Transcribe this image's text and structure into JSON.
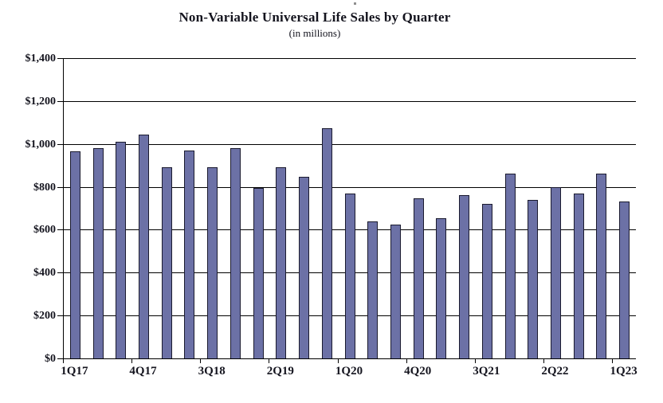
{
  "chart_data": {
    "type": "bar",
    "title": "Non-Variable Universal Life Sales by Quarter",
    "subtitle": "(in millions)",
    "categories": [
      "1Q17",
      "2Q17",
      "3Q17",
      "4Q17",
      "1Q18",
      "2Q18",
      "3Q18",
      "4Q18",
      "1Q19",
      "2Q19",
      "3Q19",
      "4Q19",
      "1Q20",
      "2Q20",
      "3Q20",
      "4Q20",
      "1Q21",
      "2Q21",
      "3Q21",
      "4Q21",
      "1Q22",
      "2Q22",
      "3Q22",
      "4Q22",
      "1Q23"
    ],
    "values": [
      965,
      980,
      1010,
      1045,
      890,
      970,
      890,
      980,
      795,
      890,
      845,
      1075,
      770,
      640,
      625,
      745,
      655,
      760,
      720,
      860,
      740,
      800,
      770,
      860,
      730
    ],
    "x_tick_labels": [
      "1Q17",
      "4Q17",
      "3Q18",
      "2Q19",
      "1Q20",
      "4Q20",
      "3Q21",
      "2Q22",
      "1Q23"
    ],
    "x_tick_every": 3,
    "y_tick_values": [
      0,
      200,
      400,
      600,
      800,
      1000,
      1200,
      1400
    ],
    "y_tick_labels": [
      "$0",
      "$200",
      "$400",
      "$600",
      "$800",
      "$1,000",
      "$1,200",
      "$1,400"
    ],
    "ylim": [
      0,
      1400
    ],
    "grid": "horizontal",
    "legend": "none",
    "colors": {
      "bar_fill": "#6c71a6",
      "bar_border": "#1a1a2e",
      "gridline": "#000000",
      "text": "#14141e",
      "background": "#ffffff"
    }
  }
}
